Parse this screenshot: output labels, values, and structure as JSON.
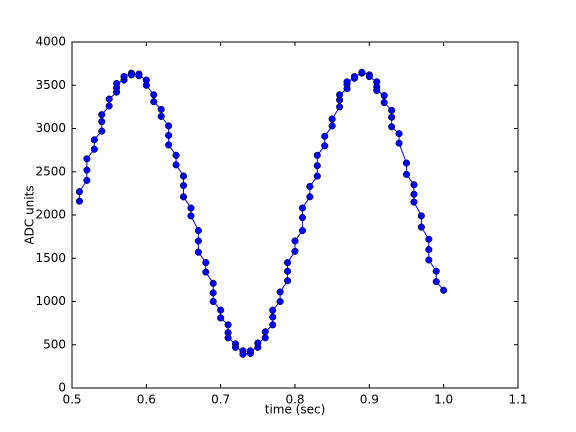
{
  "chart_data": {
    "type": "line",
    "xlabel": "time (sec)",
    "ylabel": "ADC units",
    "series": [
      {
        "color": "#0000ff",
        "x": [
          0.51,
          0.51,
          0.52,
          0.52,
          0.52,
          0.53,
          0.53,
          0.54,
          0.54,
          0.54,
          0.55,
          0.55,
          0.56,
          0.56,
          0.56,
          0.57,
          0.57,
          0.58,
          0.58,
          0.59,
          0.59,
          0.6,
          0.6,
          0.61,
          0.61,
          0.62,
          0.62,
          0.63,
          0.63,
          0.63,
          0.64,
          0.64,
          0.65,
          0.65,
          0.65,
          0.66,
          0.66,
          0.67,
          0.67,
          0.67,
          0.68,
          0.68,
          0.69,
          0.69,
          0.69,
          0.7,
          0.7,
          0.71,
          0.71,
          0.71,
          0.72,
          0.72,
          0.73,
          0.73,
          0.74,
          0.74,
          0.75,
          0.75,
          0.76,
          0.76,
          0.77,
          0.77,
          0.77,
          0.78,
          0.78,
          0.79,
          0.79,
          0.79,
          0.8,
          0.8,
          0.81,
          0.81,
          0.81,
          0.82,
          0.82,
          0.83,
          0.83,
          0.83,
          0.84,
          0.84,
          0.85,
          0.85,
          0.86,
          0.86,
          0.86,
          0.87,
          0.87,
          0.87,
          0.88,
          0.88,
          0.89,
          0.89,
          0.9,
          0.9,
          0.91,
          0.91,
          0.91,
          0.92,
          0.92,
          0.93,
          0.93,
          0.93,
          0.94,
          0.94,
          0.95,
          0.95,
          0.96,
          0.96,
          0.96,
          0.97,
          0.97,
          0.98,
          0.98,
          0.98,
          0.99,
          0.99,
          1.0
        ],
        "values": [
          2160,
          2270,
          2400,
          2520,
          2650,
          2760,
          2870,
          2970,
          3080,
          3160,
          3260,
          3340,
          3420,
          3470,
          3520,
          3560,
          3600,
          3640,
          3620,
          3630,
          3610,
          3560,
          3500,
          3390,
          3310,
          3220,
          3140,
          3030,
          2920,
          2810,
          2690,
          2580,
          2450,
          2340,
          2210,
          2080,
          1990,
          1820,
          1700,
          1570,
          1450,
          1340,
          1210,
          1100,
          1000,
          900,
          810,
          730,
          640,
          580,
          510,
          470,
          430,
          390,
          400,
          430,
          470,
          520,
          580,
          650,
          730,
          820,
          900,
          1000,
          1110,
          1240,
          1350,
          1450,
          1580,
          1700,
          1820,
          1970,
          2080,
          2210,
          2330,
          2450,
          2570,
          2690,
          2800,
          2910,
          3030,
          3110,
          3250,
          3330,
          3390,
          3460,
          3510,
          3540,
          3580,
          3600,
          3640,
          3650,
          3620,
          3600,
          3540,
          3480,
          3440,
          3380,
          3300,
          3210,
          3130,
          3020,
          2940,
          2830,
          2600,
          2470,
          2350,
          2240,
          2150,
          1990,
          1860,
          1720,
          1600,
          1480,
          1350,
          1230,
          1130
        ]
      }
    ],
    "xlim": [
      0.5,
      1.1
    ],
    "xticks": [
      0.5,
      0.6,
      0.7,
      0.8,
      0.9,
      {
        "value": 1,
        "label": "1.0"
      },
      1.1
    ],
    "ylim": [
      0,
      4000
    ],
    "yticks": [
      0,
      500,
      1000,
      1500,
      2000,
      2500,
      3000,
      3500,
      4000
    ],
    "grid": false
  }
}
